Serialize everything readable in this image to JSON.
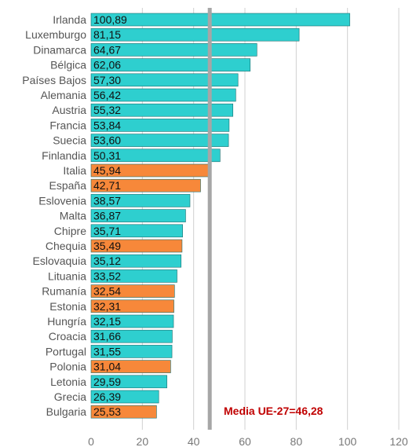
{
  "chart_data": {
    "type": "bar",
    "orientation": "horizontal",
    "categories": [
      "Irlanda",
      "Luxemburgo",
      "Dinamarca",
      "Bélgica",
      "Países Bajos",
      "Alemania",
      "Austria",
      "Francia",
      "Suecia",
      "Finlandia",
      "Italia",
      "España",
      "Eslovenia",
      "Malta",
      "Chipre",
      "Chequia",
      "Eslovaquia",
      "Lituania",
      "Rumanía",
      "Estonia",
      "Hungría",
      "Croacia",
      "Portugal",
      "Polonia",
      "Letonia",
      "Grecia",
      "Bulgaria"
    ],
    "values": [
      100.89,
      81.15,
      64.67,
      62.06,
      57.3,
      56.42,
      55.32,
      53.84,
      53.6,
      50.31,
      45.94,
      42.71,
      38.57,
      36.87,
      35.71,
      35.49,
      35.12,
      33.52,
      32.54,
      32.31,
      32.15,
      31.66,
      31.55,
      31.04,
      29.59,
      26.39,
      25.53
    ],
    "value_labels": [
      "100,89",
      "81,15",
      "64,67",
      "62,06",
      "57,30",
      "56,42",
      "55,32",
      "53,84",
      "53,60",
      "50,31",
      "45,94",
      "42,71",
      "38,57",
      "36,87",
      "35,71",
      "35,49",
      "35,12",
      "33,52",
      "32,54",
      "32,31",
      "32,15",
      "31,66",
      "31,55",
      "31,04",
      "29,59",
      "26,39",
      "25,53"
    ],
    "highlighted": [
      "Italia",
      "España",
      "Chequia",
      "Rumanía",
      "Estonia",
      "Polonia",
      "Bulgaria"
    ],
    "xlim": [
      0,
      120
    ],
    "x_ticks": [
      0,
      20,
      40,
      60,
      80,
      100,
      120
    ],
    "grid": "vertical",
    "reference_line": {
      "value": 46.28,
      "label": "Media UE-27=46,28"
    },
    "colors": {
      "bar": "#2ecfcf",
      "bar_highlight": "#f7883a",
      "bar_stroke": "#1b6f6f",
      "reference_line": "#a6a6a6",
      "reference_label": "#c00000",
      "grid": "#d0d0d0"
    }
  }
}
